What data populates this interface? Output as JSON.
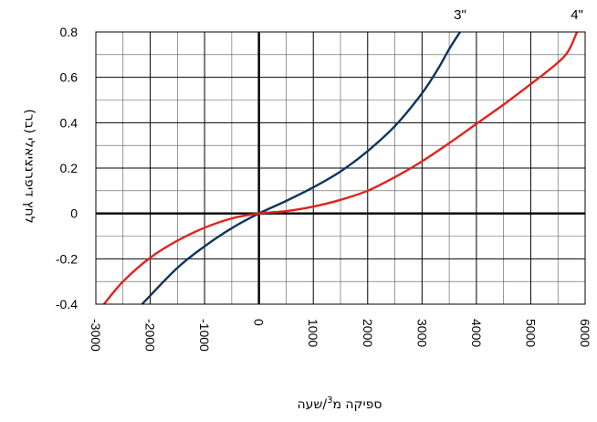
{
  "chart_data": {
    "type": "line",
    "title": "",
    "xlabel_prefix": "ספיקה מ",
    "xlabel_sup": "3",
    "xlabel_suffix": "/שעה",
    "ylabel": "לחץ דיפרנציאלי (בר)",
    "xlim": [
      -3000,
      6000
    ],
    "ylim": [
      -0.4,
      0.8
    ],
    "x_ticks": [
      -3000,
      -2000,
      -1000,
      0,
      1000,
      2000,
      3000,
      4000,
      5000,
      6000
    ],
    "x_tick_labels": [
      "-3000",
      "-2000",
      "-1000",
      "0",
      "1000",
      "2000",
      "3000",
      "4000",
      "5000",
      "6000"
    ],
    "y_ticks": [
      -0.4,
      -0.2,
      0,
      0.2,
      0.4,
      0.6,
      0.8
    ],
    "y_tick_labels": [
      "-0.4",
      "-0.2",
      "0",
      "0.2",
      "0.4",
      "0.6",
      "0.8"
    ],
    "x_minor_step": 500,
    "y_minor_step": 0.1,
    "grid": true,
    "series": [
      {
        "name": "3\"",
        "color": "#0d3561",
        "points": [
          [
            -2150,
            -0.4
          ],
          [
            -1500,
            -0.24
          ],
          [
            -1000,
            -0.145
          ],
          [
            -500,
            -0.065
          ],
          [
            0,
            0
          ],
          [
            500,
            0.055
          ],
          [
            1000,
            0.115
          ],
          [
            1500,
            0.185
          ],
          [
            2000,
            0.275
          ],
          [
            2500,
            0.385
          ],
          [
            3000,
            0.53
          ],
          [
            3300,
            0.64
          ],
          [
            3500,
            0.725
          ],
          [
            3700,
            0.8
          ]
        ]
      },
      {
        "name": "4\"",
        "color": "#e0231c",
        "points": [
          [
            -2850,
            -0.4
          ],
          [
            -2500,
            -0.3
          ],
          [
            -2000,
            -0.195
          ],
          [
            -1500,
            -0.12
          ],
          [
            -1000,
            -0.063
          ],
          [
            -500,
            -0.022
          ],
          [
            0,
            0
          ],
          [
            500,
            0.01
          ],
          [
            1000,
            0.03
          ],
          [
            1500,
            0.06
          ],
          [
            2000,
            0.1
          ],
          [
            2500,
            0.16
          ],
          [
            3000,
            0.23
          ],
          [
            3500,
            0.31
          ],
          [
            4000,
            0.395
          ],
          [
            4500,
            0.48
          ],
          [
            5000,
            0.57
          ],
          [
            5500,
            0.665
          ],
          [
            5700,
            0.72
          ],
          [
            5850,
            0.8
          ]
        ]
      }
    ]
  }
}
